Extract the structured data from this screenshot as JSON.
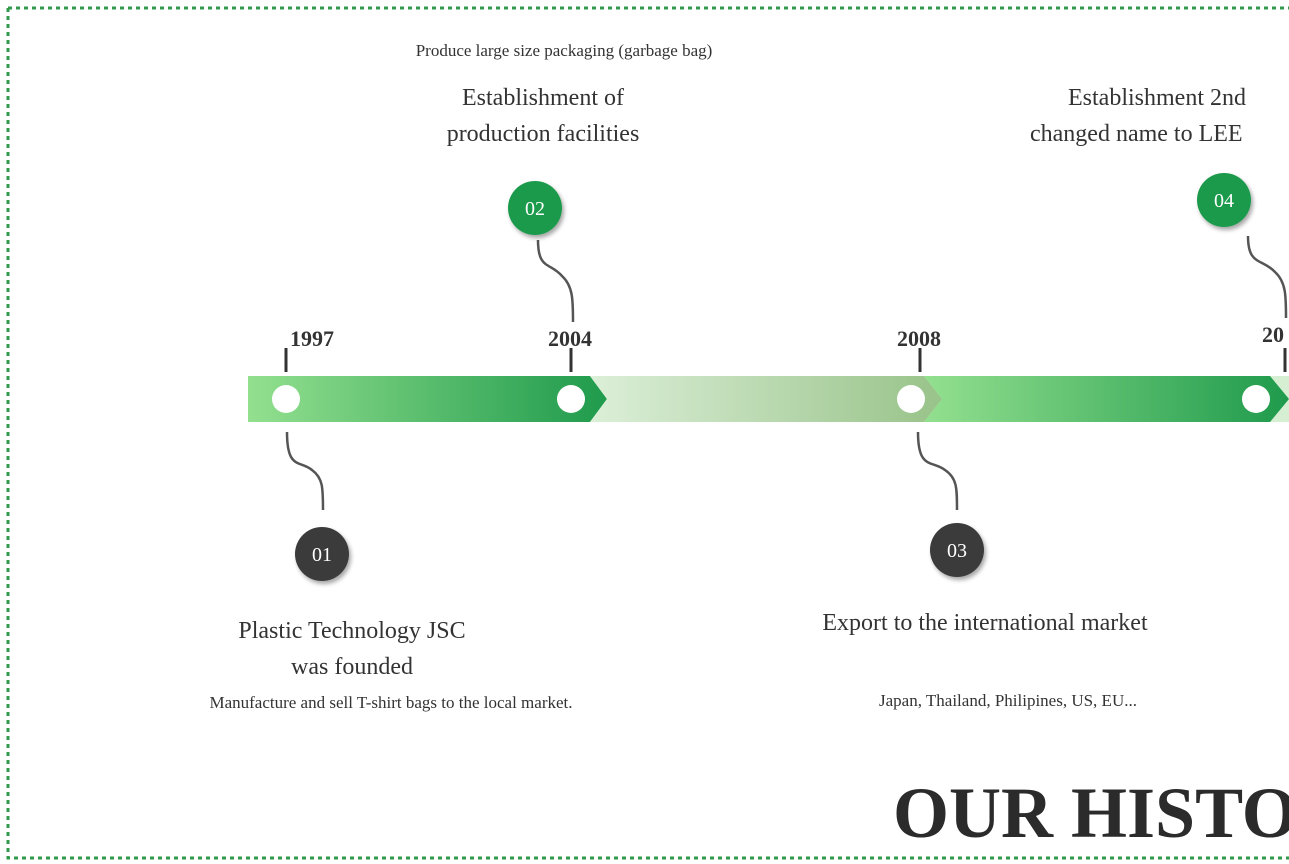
{
  "header": {
    "title": "OUR HISTO"
  },
  "timeline": {
    "years": [
      "1997",
      "2004",
      "2008",
      "20"
    ]
  },
  "milestones": [
    {
      "number": "01",
      "title": [
        "Plastic Technology JSC",
        "was founded"
      ],
      "description": "Manufacture and sell T-shirt bags to the local market."
    },
    {
      "number": "02",
      "title": [
        "Establishment of",
        "production facilities"
      ],
      "description": "Produce large size packaging (garbage bag)"
    },
    {
      "number": "03",
      "title": [
        "Export to the international market"
      ],
      "description": "Japan, Thailand, Philipines, US, EU..."
    },
    {
      "number": "04",
      "title": [
        "Establishment 2nd",
        "changed name to LEE"
      ]
    }
  ]
}
